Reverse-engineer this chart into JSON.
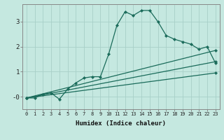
{
  "xlabel": "Humidex (Indice chaleur)",
  "bg_color": "#c5e8e0",
  "grid_color": "#a8cfc8",
  "line_color": "#1a6b5a",
  "xlim": [
    -0.5,
    23.5
  ],
  "ylim": [
    -0.5,
    3.7
  ],
  "ytick_vals": [
    0,
    1,
    2,
    3
  ],
  "ytick_labels": [
    "-0",
    "1",
    "2",
    "3"
  ],
  "xtick_labels": [
    "0",
    "1",
    "2",
    "3",
    "4",
    "5",
    "6",
    "7",
    "8",
    "9",
    "10",
    "11",
    "12",
    "13",
    "14",
    "15",
    "16",
    "17",
    "18",
    "19",
    "20",
    "21",
    "22",
    "23"
  ],
  "series": [
    {
      "x": [
        0,
        1,
        2,
        3,
        4,
        5,
        6,
        7,
        8,
        9,
        10,
        11,
        12,
        13,
        14,
        15,
        16,
        17,
        18,
        19,
        20,
        21,
        22,
        23
      ],
      "y": [
        -0.05,
        -0.05,
        0.1,
        0.15,
        -0.1,
        0.3,
        0.55,
        0.75,
        0.8,
        0.8,
        1.7,
        2.85,
        3.4,
        3.25,
        3.45,
        3.45,
        3.0,
        2.45,
        2.3,
        2.2,
        2.1,
        1.9,
        2.0,
        1.35
      ]
    },
    {
      "x": [
        0,
        23
      ],
      "y": [
        -0.05,
        1.85
      ]
    },
    {
      "x": [
        0,
        23
      ],
      "y": [
        -0.05,
        1.4
      ]
    },
    {
      "x": [
        0,
        23
      ],
      "y": [
        -0.05,
        0.95
      ]
    }
  ]
}
